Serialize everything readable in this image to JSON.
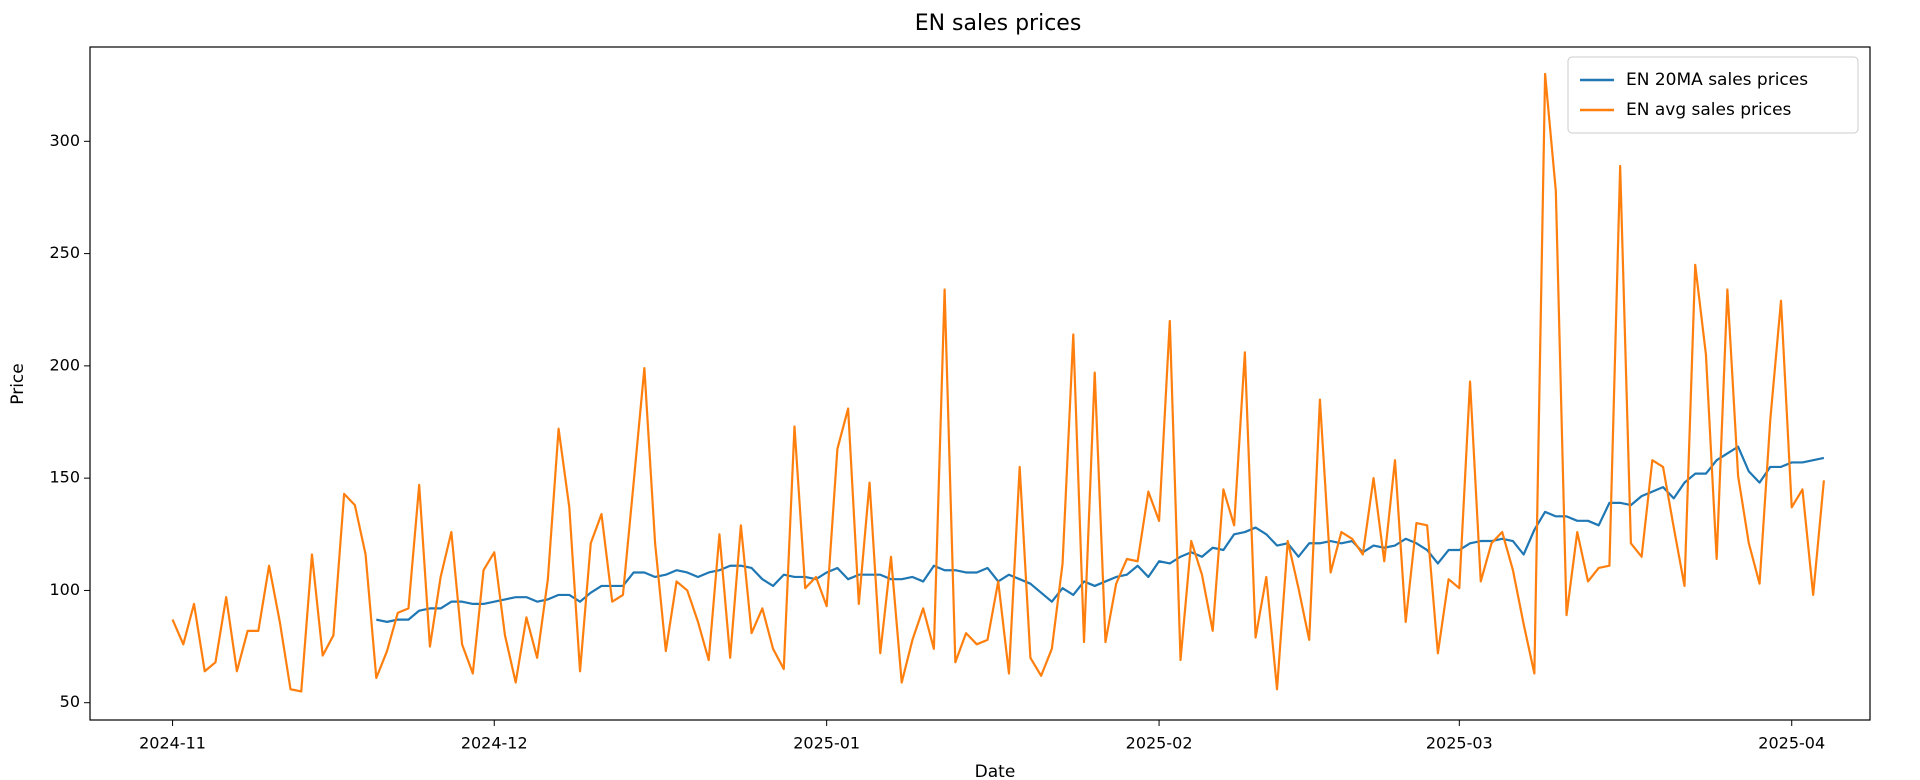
{
  "chart_data": {
    "type": "line",
    "title": "EN sales prices",
    "x_label": "Date",
    "y_label": "Price",
    "xlim": [
      -7.7,
      158.3
    ],
    "xticks": [
      {
        "value": 0,
        "label": "2024-11"
      },
      {
        "value": 30,
        "label": "2024-12"
      },
      {
        "value": 61,
        "label": "2025-01"
      },
      {
        "value": 92,
        "label": "2025-02"
      },
      {
        "value": 120,
        "label": "2025-03"
      },
      {
        "value": 151,
        "label": "2025-04"
      }
    ],
    "ylim": [
      42.3,
      342
    ],
    "yticks": [
      50,
      100,
      150,
      200,
      250,
      300
    ],
    "grid": false,
    "legend": "upper right",
    "series": [
      {
        "name": "EN 20MA sales prices",
        "color": "#1f77b4",
        "values": [
          null,
          null,
          null,
          null,
          null,
          null,
          null,
          null,
          null,
          null,
          null,
          null,
          null,
          null,
          null,
          null,
          null,
          null,
          null,
          87,
          86,
          87,
          87,
          91,
          92,
          92,
          95,
          95,
          94,
          94,
          95,
          96,
          97,
          97,
          95,
          96,
          98,
          98,
          95,
          99,
          102,
          102,
          102,
          108,
          108,
          106,
          107,
          109,
          108,
          106,
          108,
          109,
          111,
          111,
          110,
          105,
          102,
          107,
          106,
          106,
          105,
          108,
          110,
          105,
          107,
          107,
          107,
          105,
          105,
          106,
          104,
          111,
          109,
          109,
          108,
          108,
          110,
          104,
          107,
          105,
          103,
          99,
          95,
          101,
          98,
          104,
          102,
          104,
          106,
          107,
          111,
          106,
          113,
          112,
          115,
          117,
          115,
          119,
          118,
          125,
          126,
          128,
          125,
          120,
          121,
          115,
          121,
          121,
          122,
          121,
          122,
          117,
          120,
          119,
          120,
          123,
          121,
          118,
          112,
          118,
          118,
          121,
          122,
          122,
          123,
          122,
          116,
          127,
          135,
          133,
          133,
          131,
          131,
          129,
          139,
          139,
          138,
          142,
          144,
          146,
          141,
          148,
          152,
          152,
          158,
          161,
          164,
          153,
          148,
          155,
          155,
          157,
          157,
          158,
          159
        ]
      },
      {
        "name": "EN avg sales prices",
        "color": "#ff7f0e",
        "values": [
          87,
          76,
          94,
          64,
          68,
          97,
          64,
          82,
          82,
          111,
          86,
          56,
          55,
          116,
          71,
          80,
          143,
          138,
          116,
          61,
          73,
          90,
          92,
          147,
          75,
          106,
          126,
          76,
          63,
          109,
          117,
          80,
          59,
          88,
          70,
          105,
          172,
          137,
          64,
          121,
          134,
          95,
          98,
          148,
          199,
          121,
          73,
          104,
          100,
          86,
          69,
          125,
          70,
          129,
          81,
          92,
          74,
          65,
          173,
          101,
          106,
          93,
          163,
          181,
          94,
          148,
          72,
          115,
          59,
          78,
          92,
          74,
          234,
          68,
          81,
          76,
          78,
          104,
          63,
          155,
          70,
          62,
          74,
          112,
          214,
          77,
          197,
          77,
          103,
          114,
          113,
          144,
          131,
          220,
          69,
          122,
          107,
          82,
          145,
          129,
          206,
          79,
          106,
          56,
          122,
          101,
          78,
          185,
          108,
          126,
          123,
          116,
          150,
          113,
          158,
          86,
          130,
          129,
          72,
          105,
          101,
          193,
          104,
          121,
          126,
          109,
          85,
          63,
          330,
          278,
          89,
          126,
          104,
          110,
          111,
          289,
          121,
          115,
          158,
          155,
          128,
          102,
          245,
          205,
          114,
          234,
          151,
          121,
          103,
          176,
          229,
          137,
          145,
          98,
          149
        ]
      }
    ]
  }
}
